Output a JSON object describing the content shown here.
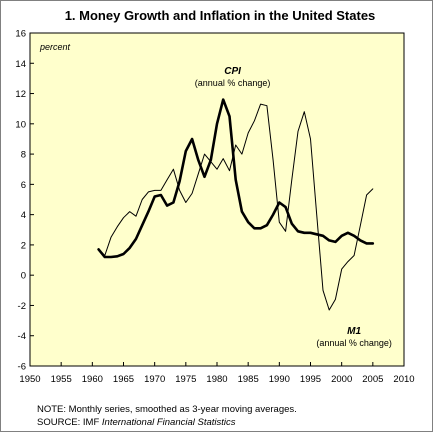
{
  "chart_data": {
    "type": "line",
    "title": "1. Money Growth and Inflation in the United States",
    "ylabel": "percent",
    "xlim": [
      1950,
      2010
    ],
    "ylim": [
      -6,
      16
    ],
    "x_ticks": [
      1950,
      1955,
      1960,
      1965,
      1970,
      1975,
      1980,
      1985,
      1990,
      1995,
      2000,
      2005,
      2010
    ],
    "y_ticks": [
      -6,
      -4,
      -2,
      0,
      2,
      4,
      6,
      8,
      10,
      12,
      14,
      16
    ],
    "grid": false,
    "plot_background": "#ffffcc",
    "series": [
      {
        "name": "CPI",
        "sublabel": "(annual % change)",
        "style": "thick",
        "color": "#000000",
        "x": [
          1961,
          1962,
          1963,
          1964,
          1965,
          1966,
          1967,
          1968,
          1969,
          1970,
          1971,
          1972,
          1973,
          1974,
          1975,
          1976,
          1977,
          1978,
          1979,
          1980,
          1981,
          1982,
          1983,
          1984,
          1985,
          1986,
          1987,
          1988,
          1989,
          1990,
          1991,
          1992,
          1993,
          1994,
          1995,
          1996,
          1997,
          1998,
          1999,
          2000,
          2001,
          2002,
          2003,
          2004,
          2005
        ],
        "y": [
          1.7,
          1.2,
          1.2,
          1.25,
          1.4,
          1.8,
          2.4,
          3.3,
          4.2,
          5.2,
          5.3,
          4.6,
          4.8,
          6.2,
          8.2,
          9.0,
          7.6,
          6.5,
          7.6,
          10.0,
          11.6,
          10.5,
          6.3,
          4.2,
          3.5,
          3.1,
          3.1,
          3.3,
          4.0,
          4.8,
          4.5,
          3.4,
          2.9,
          2.8,
          2.8,
          2.7,
          2.6,
          2.3,
          2.2,
          2.6,
          2.8,
          2.6,
          2.3,
          2.1,
          2.1
        ]
      },
      {
        "name": "M1",
        "sublabel": "(annual % change)",
        "style": "thin",
        "color": "#000000",
        "x": [
          1961,
          1962,
          1963,
          1964,
          1965,
          1966,
          1967,
          1968,
          1969,
          1970,
          1971,
          1972,
          1973,
          1974,
          1975,
          1976,
          1977,
          1978,
          1979,
          1980,
          1981,
          1982,
          1983,
          1984,
          1985,
          1986,
          1987,
          1988,
          1989,
          1990,
          1991,
          1992,
          1993,
          1994,
          1995,
          1996,
          1997,
          1998,
          1999,
          2000,
          2001,
          2002,
          2003,
          2004,
          2005
        ],
        "y": [
          1.7,
          1.3,
          2.5,
          3.2,
          3.8,
          4.2,
          3.9,
          5.0,
          5.5,
          5.6,
          5.6,
          6.3,
          7.0,
          5.6,
          4.8,
          5.4,
          6.7,
          8.0,
          7.5,
          7.0,
          7.7,
          6.9,
          8.6,
          8.0,
          9.4,
          10.2,
          11.3,
          11.2,
          7.6,
          3.5,
          2.9,
          6.3,
          9.5,
          10.8,
          9.0,
          4.0,
          -1.0,
          -2.3,
          -1.6,
          0.4,
          0.9,
          1.3,
          3.3,
          5.3,
          5.7
        ]
      }
    ]
  },
  "notes": {
    "line1": "NOTE: Monthly series, smoothed as 3-year moving averages.",
    "source_prefix": "SOURCE: IMF ",
    "source_title": "International Financial Statistics"
  }
}
